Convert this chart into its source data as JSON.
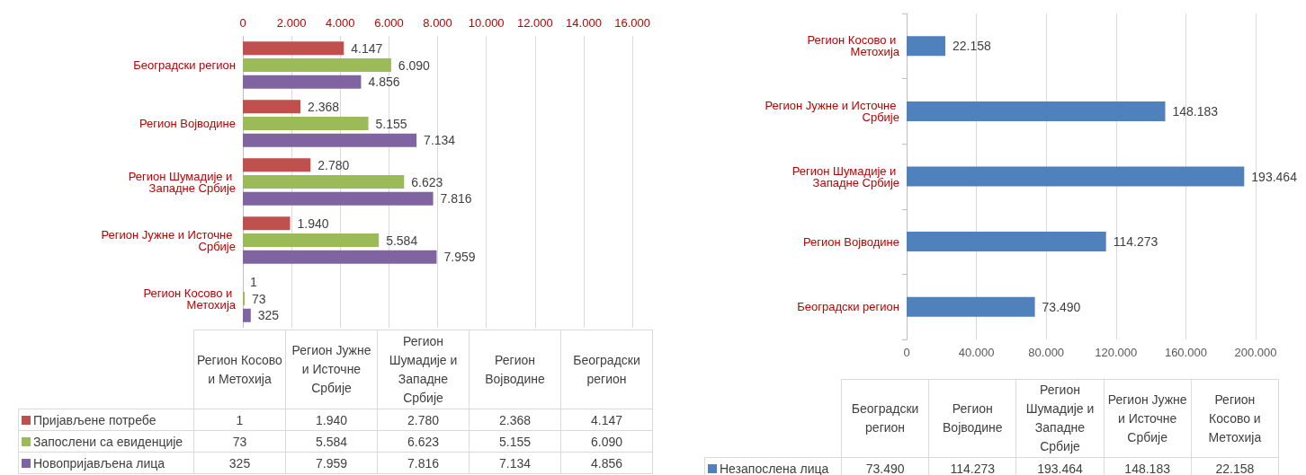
{
  "chart_data": [
    {
      "type": "bar",
      "orientation": "horizontal",
      "categories": [
        "Београдски регион",
        "Регион Војводине",
        "Регион Шумадије и Западне Србије",
        "Регион Јужне и Источне Србије",
        "Регион Косово и Метохија"
      ],
      "series": [
        {
          "name": "Пријављене потребе",
          "color": "#c0504d",
          "values": [
            4147,
            2368,
            2780,
            1940,
            1
          ],
          "value_labels": [
            "4.147",
            "2.368",
            "2.780",
            "1.940",
            "1"
          ]
        },
        {
          "name": "Запослени са евиденције",
          "color": "#9bbb59",
          "values": [
            6090,
            5155,
            6623,
            5584,
            73
          ],
          "value_labels": [
            "6.090",
            "5.155",
            "6.623",
            "5.584",
            "73"
          ]
        },
        {
          "name": "Новопријављена лица",
          "color": "#8064a2",
          "values": [
            4856,
            7134,
            7816,
            7959,
            325
          ],
          "value_labels": [
            "4.856",
            "7.134",
            "7.816",
            "7.959",
            "325"
          ]
        }
      ],
      "x2lim": [
        0,
        16000
      ],
      "x2ticks": [
        0,
        {
          "value": 2000,
          "label": "2.000"
        },
        {
          "value": 4000,
          "label": "4.000"
        },
        {
          "value": 6000,
          "label": "6.000"
        },
        {
          "value": 8000,
          "label": "8.000"
        },
        {
          "value": 10000,
          "label": "10.000"
        },
        {
          "value": 12000,
          "label": "12.000"
        },
        {
          "value": 14000,
          "label": "14.000"
        },
        {
          "value": 16000,
          "label": "16.000"
        }
      ],
      "grid": "x",
      "legend": "bottom"
    },
    {
      "type": "bar",
      "orientation": "horizontal",
      "categories": [
        "Регион Косово и Метохија",
        "Регион Јужне и Источне Србије",
        "Регион Шумадије и Западне Србије",
        "Регион Војводине",
        "Београдски регион"
      ],
      "series": [
        {
          "name": "Незапослена лица",
          "color": "#4f81bd",
          "values": [
            22158,
            148183,
            193464,
            114273,
            73490
          ],
          "value_labels": [
            "22.158",
            "148.183",
            "193.464",
            "114.273",
            "73.490"
          ]
        }
      ],
      "xlim": [
        0,
        200000
      ],
      "xticks": [
        0,
        {
          "value": 40000,
          "label": "40.000"
        },
        {
          "value": 80000,
          "label": "80.000"
        },
        {
          "value": 120000,
          "label": "120.000"
        },
        {
          "value": 160000,
          "label": "160.000"
        },
        {
          "value": 200000,
          "label": "200.000"
        }
      ],
      "grid": "x",
      "legend": "bottom"
    }
  ]
}
